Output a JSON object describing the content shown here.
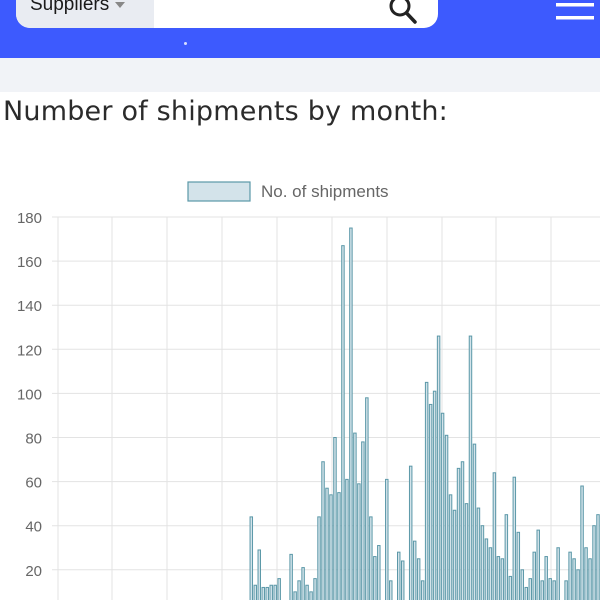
{
  "header": {
    "category_label": "Suppliers",
    "search_placeholder": "",
    "accent_color": "#3d5afe"
  },
  "page": {
    "title": "Number of shipments by month:"
  },
  "chart_data": {
    "type": "bar",
    "legend": {
      "label": "No. of shipments",
      "position": "top"
    },
    "bar_fill": "#d3e3ea",
    "bar_stroke": "#5b98a8",
    "grid": true,
    "y_ticks": [
      "180",
      "160",
      "140",
      "120",
      "100",
      "80",
      "60",
      "40",
      "20"
    ],
    "ylim": [
      0,
      180
    ],
    "series": [
      {
        "name": "No. of shipments",
        "values": [
          0,
          0,
          0,
          0,
          0,
          2,
          0,
          0,
          0,
          0,
          0,
          0,
          0,
          0,
          0,
          0,
          0,
          0,
          0,
          0,
          0,
          0,
          0,
          0,
          0,
          0,
          2,
          0,
          0,
          0,
          0,
          0,
          0,
          0,
          0,
          0,
          0,
          0,
          0,
          0,
          0,
          0,
          0,
          0,
          0,
          0,
          0,
          0,
          44,
          13,
          29,
          12,
          12,
          13,
          13,
          16,
          4,
          5,
          27,
          10,
          15,
          21,
          13,
          10,
          16,
          44,
          69,
          57,
          54,
          80,
          55,
          167,
          61,
          175,
          82,
          59,
          78,
          98,
          44,
          26,
          31,
          0,
          61,
          15,
          0,
          28,
          24,
          0,
          67,
          33,
          25,
          15,
          105,
          95,
          101,
          126,
          91,
          81,
          54,
          47,
          66,
          69,
          50,
          126,
          77,
          48,
          40,
          34,
          30,
          64,
          26,
          25,
          45,
          17,
          62,
          37,
          20,
          12,
          16,
          28,
          38,
          15,
          26,
          16,
          15,
          30,
          0,
          15,
          28,
          25,
          20,
          58,
          30,
          25,
          40,
          45
        ]
      }
    ]
  }
}
